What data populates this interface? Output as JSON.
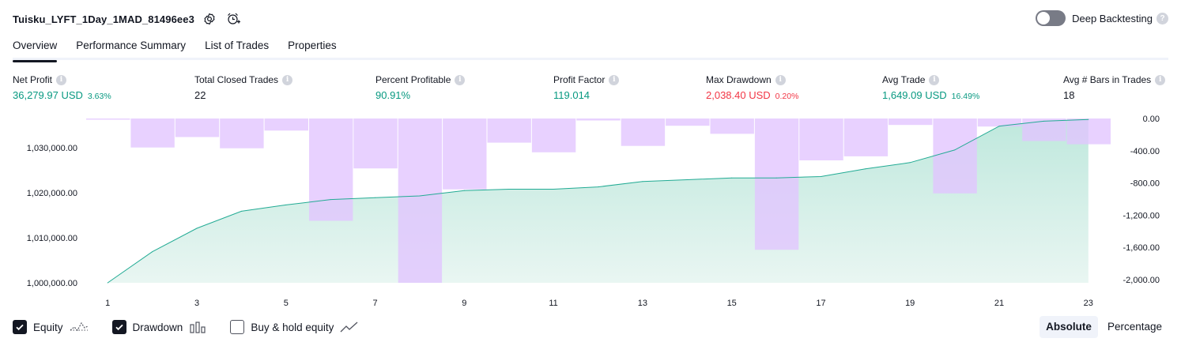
{
  "header": {
    "title": "Tuisku_LYFT_1Day_1MAD_81496ee3",
    "deep_backtesting_label": "Deep Backtesting",
    "deep_backtesting_enabled": false
  },
  "tabs": [
    {
      "label": "Overview",
      "active": true
    },
    {
      "label": "Performance Summary",
      "active": false
    },
    {
      "label": "List of Trades",
      "active": false
    },
    {
      "label": "Properties",
      "active": false
    }
  ],
  "stats": {
    "net_profit": {
      "label": "Net Profit",
      "value": "36,279.97 USD",
      "pct": "3.63%"
    },
    "total_closed_trades": {
      "label": "Total Closed Trades",
      "value": "22"
    },
    "percent_profitable": {
      "label": "Percent Profitable",
      "value": "90.91%"
    },
    "profit_factor": {
      "label": "Profit Factor",
      "value": "119.014"
    },
    "max_drawdown": {
      "label": "Max Drawdown",
      "value": "2,038.40 USD",
      "pct": "0.20%"
    },
    "avg_trade": {
      "label": "Avg Trade",
      "value": "1,649.09 USD",
      "pct": "16.49%"
    },
    "avg_bars": {
      "label": "Avg # Bars in Trades",
      "value": "18"
    }
  },
  "colors": {
    "equity_line": "#22ab94",
    "equity_fill": "#d4efe8",
    "drawdown_bar": "#e1c4ff",
    "positive": "#089981",
    "negative": "#f23645"
  },
  "chart_data": {
    "type": "area",
    "x": [
      1,
      2,
      3,
      4,
      5,
      6,
      7,
      8,
      9,
      10,
      11,
      12,
      13,
      14,
      15,
      16,
      17,
      18,
      19,
      20,
      21,
      22,
      23
    ],
    "x_ticks": [
      "1",
      "3",
      "5",
      "7",
      "9",
      "11",
      "13",
      "15",
      "17",
      "19",
      "21",
      "23"
    ],
    "equity": {
      "name": "Equity",
      "values": [
        1000000,
        1006900,
        1012100,
        1015900,
        1017300,
        1018500,
        1018900,
        1019300,
        1020500,
        1020800,
        1020800,
        1021300,
        1022500,
        1022900,
        1023300,
        1023300,
        1023600,
        1025300,
        1026700,
        1029500,
        1034800,
        1035900,
        1036280
      ]
    },
    "drawdown": {
      "name": "Drawdown",
      "values": [
        -15,
        -360,
        -230,
        -370,
        -150,
        -1270,
        -620,
        -2040,
        -880,
        -300,
        -420,
        -25,
        -340,
        -90,
        -190,
        -1630,
        -520,
        -470,
        -80,
        -930,
        -100,
        -280,
        -320
      ]
    },
    "left_axis": {
      "ylim": [
        1000000,
        1036500
      ],
      "ticks": [
        "1,000,000.00",
        "1,010,000.00",
        "1,020,000.00",
        "1,030,000.00"
      ]
    },
    "right_axis": {
      "ylim": [
        -2040,
        0
      ],
      "ticks": [
        "0.00",
        "-400.00",
        "-800.00",
        "-1,200.00",
        "-1,600.00",
        "-2,000.00"
      ]
    }
  },
  "legend": [
    {
      "label": "Equity",
      "checked": true,
      "icon": "equity-line-icon"
    },
    {
      "label": "Drawdown",
      "checked": true,
      "icon": "drawdown-bars-icon"
    },
    {
      "label": "Buy & hold equity",
      "checked": false,
      "icon": "buy-hold-line-icon"
    }
  ],
  "view_mode": {
    "absolute_label": "Absolute",
    "percentage_label": "Percentage",
    "selected": "Absolute"
  }
}
